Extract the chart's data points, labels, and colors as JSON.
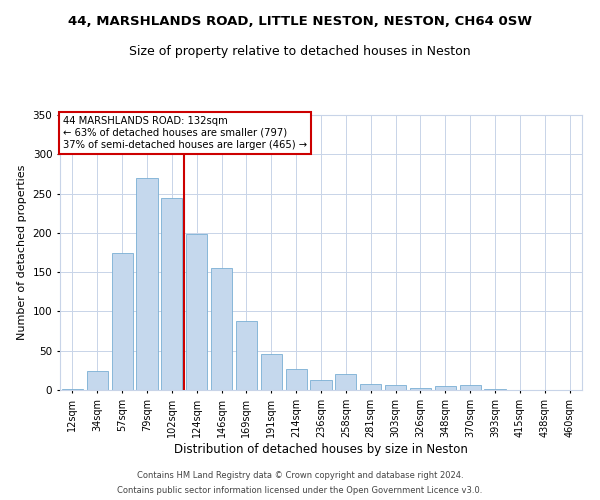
{
  "title1": "44, MARSHLANDS ROAD, LITTLE NESTON, NESTON, CH64 0SW",
  "title2": "Size of property relative to detached houses in Neston",
  "xlabel": "Distribution of detached houses by size in Neston",
  "ylabel": "Number of detached properties",
  "categories": [
    "12sqm",
    "34sqm",
    "57sqm",
    "79sqm",
    "102sqm",
    "124sqm",
    "146sqm",
    "169sqm",
    "191sqm",
    "214sqm",
    "236sqm",
    "258sqm",
    "281sqm",
    "303sqm",
    "326sqm",
    "348sqm",
    "370sqm",
    "393sqm",
    "415sqm",
    "438sqm",
    "460sqm"
  ],
  "values": [
    1,
    24,
    175,
    270,
    245,
    198,
    155,
    88,
    46,
    27,
    13,
    20,
    8,
    7,
    3,
    5,
    6,
    1,
    0,
    0,
    0
  ],
  "bar_color": "#c5d8ed",
  "bar_edge_color": "#7aafd4",
  "vline_color": "#cc0000",
  "annotation_text": "44 MARSHLANDS ROAD: 132sqm\n← 63% of detached houses are smaller (797)\n37% of semi-detached houses are larger (465) →",
  "annotation_box_color": "#ffffff",
  "annotation_box_edge_color": "#cc0000",
  "bg_color": "#ffffff",
  "grid_color": "#c8d4e8",
  "footer1": "Contains HM Land Registry data © Crown copyright and database right 2024.",
  "footer2": "Contains public sector information licensed under the Open Government Licence v3.0.",
  "ylim": [
    0,
    350
  ],
  "title1_fontsize": 9.5,
  "title2_fontsize": 9,
  "xlabel_fontsize": 8.5,
  "ylabel_fontsize": 8,
  "tick_fontsize": 7,
  "footer_fontsize": 6
}
